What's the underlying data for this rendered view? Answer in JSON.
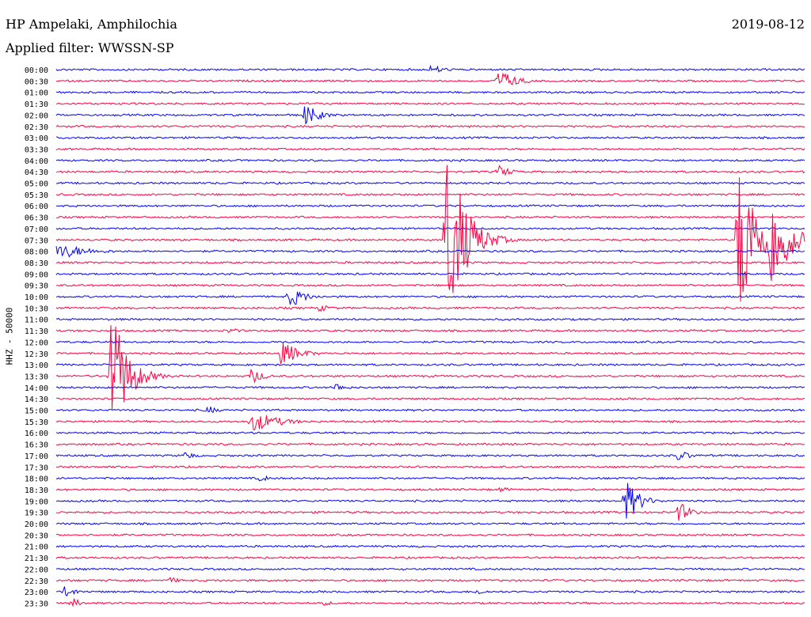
{
  "header": {
    "station": "HP Ampelaki, Amphilochia",
    "filter": "Applied filter: WWSSN-SP",
    "date": "2019-08-12"
  },
  "channel_label": "HHZ - 50000",
  "colors": {
    "even_hour": "#0000ff",
    "half_hour": "#ff0040"
  },
  "chart_data": {
    "type": "line",
    "title": "HP Ampelaki, Amphilochia",
    "subtitle": "Applied filter: WWSSN-SP",
    "ylabel": "HHZ - 50000",
    "xlabel": "",
    "grid": false,
    "rows": [
      {
        "label": "00:00",
        "events": [
          {
            "x": 0.5,
            "amp": 5,
            "dur": 0.03
          }
        ]
      },
      {
        "label": "00:30",
        "events": [
          {
            "x": 0.59,
            "amp": 12,
            "dur": 0.04
          }
        ]
      },
      {
        "label": "01:00",
        "events": []
      },
      {
        "label": "01:30",
        "events": []
      },
      {
        "label": "02:00",
        "events": [
          {
            "x": 0.33,
            "amp": 12,
            "dur": 0.03
          }
        ]
      },
      {
        "label": "02:30",
        "events": []
      },
      {
        "label": "03:00",
        "events": []
      },
      {
        "label": "03:30",
        "events": []
      },
      {
        "label": "04:00",
        "events": []
      },
      {
        "label": "04:30",
        "events": [
          {
            "x": 0.59,
            "amp": 8,
            "dur": 0.01
          }
        ]
      },
      {
        "label": "05:00",
        "events": []
      },
      {
        "label": "05:30",
        "events": []
      },
      {
        "label": "06:00",
        "events": []
      },
      {
        "label": "06:30",
        "events": []
      },
      {
        "label": "07:00",
        "events": []
      },
      {
        "label": "07:30",
        "events": [
          {
            "x": 0.52,
            "amp": 100,
            "dur": 0.05
          },
          {
            "x": 0.91,
            "amp": 100,
            "dur": 0.04
          },
          {
            "x": 0.95,
            "amp": 60,
            "dur": 0.06
          }
        ]
      },
      {
        "label": "08:00",
        "events": [
          {
            "x": 0.0,
            "amp": 8,
            "dur": 0.12
          }
        ]
      },
      {
        "label": "08:30",
        "events": []
      },
      {
        "label": "09:00",
        "events": []
      },
      {
        "label": "09:30",
        "events": []
      },
      {
        "label": "10:00",
        "events": [
          {
            "x": 0.31,
            "amp": 12,
            "dur": 0.03
          }
        ]
      },
      {
        "label": "10:30",
        "events": [
          {
            "x": 0.35,
            "amp": 4,
            "dur": 0.02
          }
        ]
      },
      {
        "label": "11:00",
        "events": []
      },
      {
        "label": "11:30",
        "events": [
          {
            "x": 0.23,
            "amp": 3,
            "dur": 0.02
          }
        ]
      },
      {
        "label": "12:00",
        "events": []
      },
      {
        "label": "12:30",
        "events": [
          {
            "x": 0.3,
            "amp": 14,
            "dur": 0.04
          }
        ]
      },
      {
        "label": "13:00",
        "events": []
      },
      {
        "label": "13:30",
        "events": [
          {
            "x": 0.07,
            "amp": 75,
            "dur": 0.04
          },
          {
            "x": 0.26,
            "amp": 9,
            "dur": 0.01
          }
        ]
      },
      {
        "label": "14:00",
        "events": [
          {
            "x": 0.37,
            "amp": 5,
            "dur": 0.02
          }
        ]
      },
      {
        "label": "14:30",
        "events": []
      },
      {
        "label": "15:00",
        "events": [
          {
            "x": 0.2,
            "amp": 5,
            "dur": 0.01
          }
        ]
      },
      {
        "label": "15:30",
        "events": [
          {
            "x": 0.26,
            "amp": 11,
            "dur": 0.09
          }
        ]
      },
      {
        "label": "16:00",
        "events": []
      },
      {
        "label": "16:30",
        "events": []
      },
      {
        "label": "17:00",
        "events": [
          {
            "x": 0.17,
            "amp": 5,
            "dur": 0.01
          },
          {
            "x": 0.83,
            "amp": 6,
            "dur": 0.02
          }
        ]
      },
      {
        "label": "17:30",
        "events": []
      },
      {
        "label": "18:00",
        "events": [
          {
            "x": 0.27,
            "amp": 4,
            "dur": 0.01
          }
        ]
      },
      {
        "label": "18:30",
        "events": [
          {
            "x": 0.59,
            "amp": 3,
            "dur": 0.03
          }
        ]
      },
      {
        "label": "19:00",
        "events": [
          {
            "x": 0.76,
            "amp": 24,
            "dur": 0.02
          }
        ]
      },
      {
        "label": "19:30",
        "events": [
          {
            "x": 0.83,
            "amp": 12,
            "dur": 0.01
          }
        ]
      },
      {
        "label": "20:00",
        "events": []
      },
      {
        "label": "20:30",
        "events": []
      },
      {
        "label": "21:00",
        "events": []
      },
      {
        "label": "21:30",
        "events": []
      },
      {
        "label": "22:00",
        "events": []
      },
      {
        "label": "22:30",
        "events": [
          {
            "x": 0.15,
            "amp": 4,
            "dur": 0.005
          }
        ]
      },
      {
        "label": "23:00",
        "events": [
          {
            "x": 0.01,
            "amp": 7,
            "dur": 0.01
          },
          {
            "x": 0.56,
            "amp": 4,
            "dur": 0.005
          }
        ]
      },
      {
        "label": "23:30",
        "events": [
          {
            "x": 0.02,
            "amp": 6,
            "dur": 0.005
          },
          {
            "x": 0.35,
            "amp": 3,
            "dur": 0.04
          }
        ]
      }
    ]
  }
}
